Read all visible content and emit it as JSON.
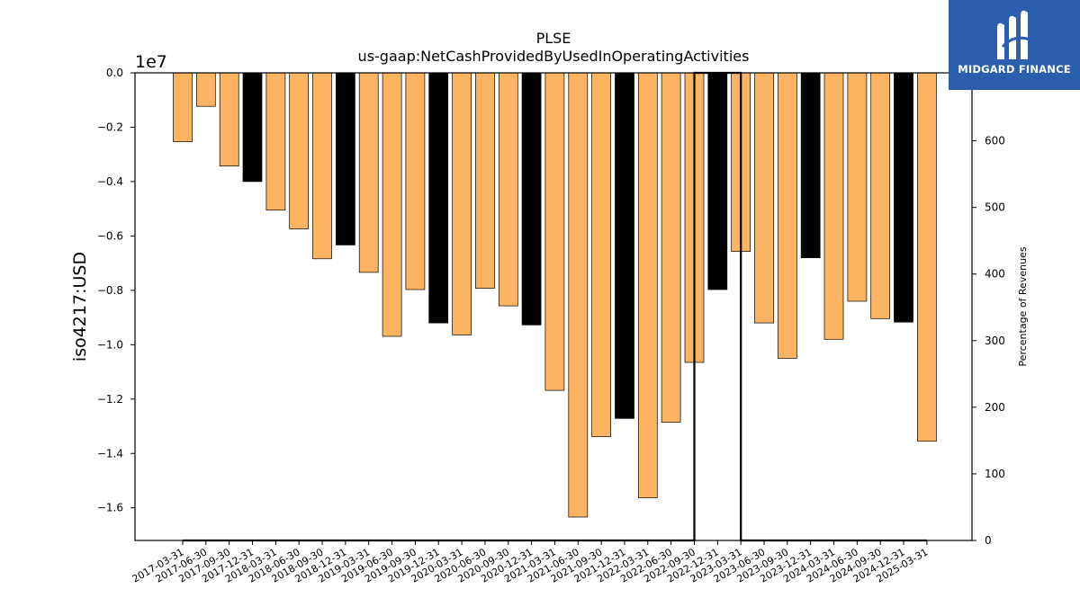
{
  "logo": {
    "text": "MIDGARD FINANCE",
    "icon": "midgard-mark-icon",
    "bg_color": "#2b5fae"
  },
  "chart_data": {
    "type": "bar",
    "title": "PLSE",
    "subtitle": "us-gaap:NetCashProvidedByUsedInOperatingActivities",
    "ylabel": "iso4217:USD",
    "y_offset_label": "1e7",
    "y2label": "Percentage of Revenues",
    "ylim": [
      -1.72,
      0.0
    ],
    "y_ticks": [
      0.0,
      -0.2,
      -0.4,
      -0.6,
      -0.8,
      -1.0,
      -1.2,
      -1.4,
      -1.6
    ],
    "y_tick_labels": [
      "0.0",
      "−0.2",
      "−0.4",
      "−0.6",
      "−0.8",
      "−1.0",
      "−1.2",
      "−1.4",
      "−1.6"
    ],
    "y2lim": [
      0,
      702
    ],
    "y2_ticks": [
      0,
      100,
      200,
      300,
      400,
      500,
      600
    ],
    "y2_tick_labels": [
      "0",
      "100",
      "200",
      "300",
      "400",
      "500",
      "600"
    ],
    "categories": [
      "2017-03-31",
      "2017-06-30",
      "2017-09-30",
      "2017-12-31",
      "2018-03-31",
      "2018-06-30",
      "2018-09-30",
      "2018-12-31",
      "2019-03-31",
      "2019-06-30",
      "2019-09-30",
      "2019-12-31",
      "2020-03-31",
      "2020-06-30",
      "2020-09-30",
      "2020-12-31",
      "2021-03-31",
      "2021-06-30",
      "2021-09-30",
      "2021-12-31",
      "2022-03-31",
      "2022-06-30",
      "2022-09-30",
      "2022-12-31",
      "2023-03-31",
      "2023-06-30",
      "2023-09-30",
      "2023-12-31",
      "2024-03-31",
      "2024-06-30",
      "2024-09-30",
      "2024-12-31",
      "2025-03-31"
    ],
    "values": [
      -0.253,
      -0.123,
      -0.343,
      -0.4,
      -0.505,
      -0.574,
      -0.684,
      -0.633,
      -0.734,
      -0.969,
      -0.797,
      -0.92,
      -0.964,
      -0.793,
      -0.857,
      -0.927,
      -1.168,
      -1.634,
      -1.338,
      -1.271,
      -1.563,
      -1.285,
      -1.065,
      -0.797,
      -0.657,
      -0.92,
      -1.05,
      -0.68,
      -0.98,
      -0.84,
      -0.904,
      -0.917,
      -1.355
    ],
    "bar_colors": [
      "#fdb462",
      "#fdb462",
      "#fdb462",
      "#000000",
      "#fdb462",
      "#fdb462",
      "#fdb462",
      "#000000",
      "#fdb462",
      "#fdb462",
      "#fdb462",
      "#000000",
      "#fdb462",
      "#fdb462",
      "#fdb462",
      "#000000",
      "#fdb462",
      "#fdb462",
      "#fdb462",
      "#000000",
      "#fdb462",
      "#fdb462",
      "#fdb462",
      "#000000",
      "#fdb462",
      "#fdb462",
      "#fdb462",
      "#000000",
      "#fdb462",
      "#fdb462",
      "#fdb462",
      "#000000",
      "#fdb462"
    ],
    "pct_revenue_line": {
      "x_categories": [
        "2017-03-31",
        "2017-06-30",
        "2017-09-30",
        "2017-12-31",
        "2018-03-31",
        "2018-06-30",
        "2018-09-30",
        "2018-12-31",
        "2019-03-31",
        "2019-06-30",
        "2019-09-30",
        "2019-12-31",
        "2020-03-31",
        "2020-06-30",
        "2020-09-30",
        "2020-12-31",
        "2021-03-31",
        "2021-06-30",
        "2021-09-30",
        "2021-12-31",
        "2022-03-31",
        "2022-06-30",
        "2022-09-30",
        "2022-09-30",
        "2022-12-31",
        "2023-03-31",
        "2023-03-31",
        "2023-06-30",
        "2023-09-30",
        "2023-12-31",
        "2024-03-31",
        "2024-06-30",
        "2024-09-30",
        "2024-12-31",
        "2025-03-31"
      ],
      "values": [
        0,
        0,
        0,
        0,
        0,
        0,
        0,
        0,
        0,
        0,
        0,
        0,
        0,
        0,
        0,
        0,
        0,
        0,
        0,
        0,
        0,
        0,
        0,
        702,
        702,
        702,
        0,
        0,
        0,
        0,
        0,
        0,
        0,
        0,
        0
      ],
      "color": "#000000"
    },
    "grid": false,
    "legend": "none"
  }
}
